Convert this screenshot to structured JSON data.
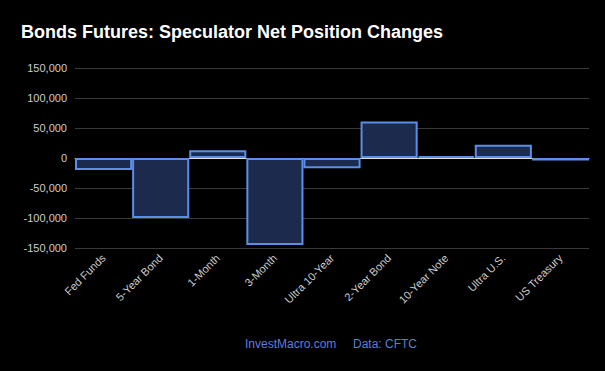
{
  "chart_data": {
    "type": "bar",
    "title": "Bonds Futures: Speculator Net Position Changes",
    "categories": [
      "Fed Funds",
      "5-Year Bond",
      "1-Month",
      "3-Month",
      "Ultra 10-Year",
      "2-Year Bond",
      "10-Year Note",
      "Ultra U.S.",
      "US Treasury"
    ],
    "values": [
      -20000,
      -100000,
      13000,
      -145000,
      -17000,
      61000,
      3000,
      22000,
      -4000
    ],
    "color": "#1c2b4d",
    "ylim": [
      -150000,
      150000
    ],
    "yticks": [
      {
        "value": -150000,
        "label": "-150,000"
      },
      {
        "value": -100000,
        "label": "-100,000"
      },
      {
        "value": -50000,
        "label": "-50,000"
      },
      0,
      {
        "value": 50000,
        "label": "50,000"
      },
      {
        "value": 100000,
        "label": "100,000"
      },
      {
        "value": 150000,
        "label": "150,000"
      }
    ],
    "grid": true,
    "annotations": [
      "InvestMacro.com",
      "Data: CFTC"
    ]
  }
}
